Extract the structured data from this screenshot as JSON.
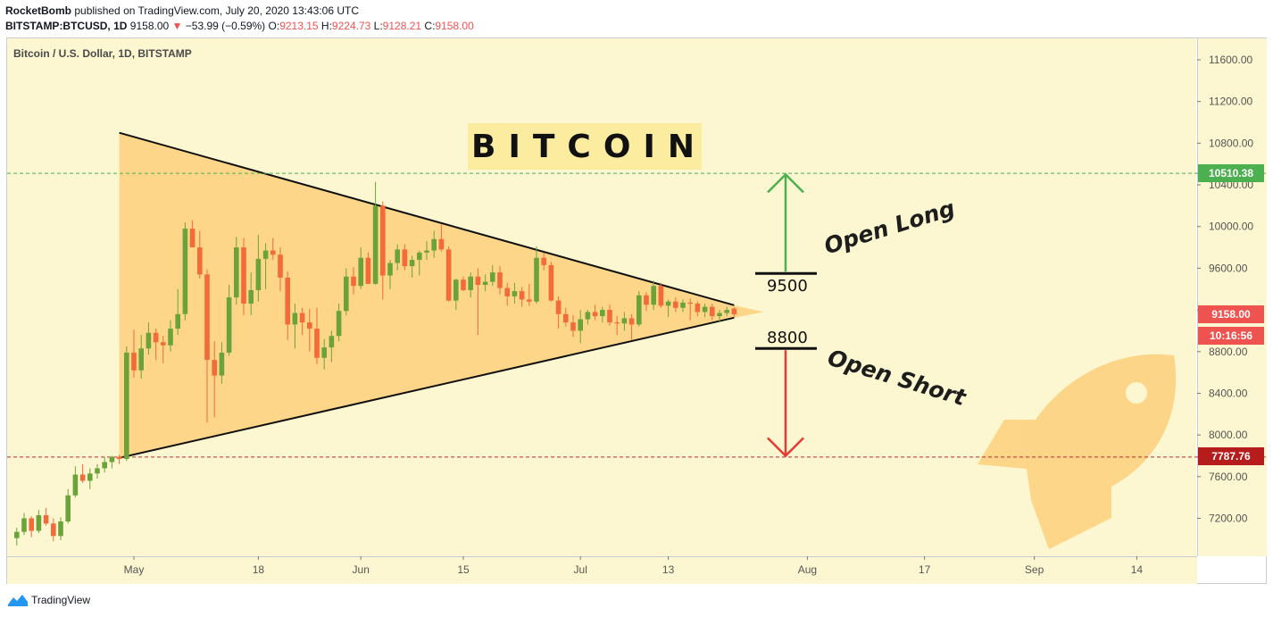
{
  "header": {
    "author": "RocketBomb",
    "published_text": "published on TradingView.com, July 20, 2020 13:43:06 UTC",
    "symbol_line": "BITSTAMP:BTCUSD, 1D",
    "last_price": "9158.00",
    "change": "−53.99 (−0.59%)",
    "open_label": "O:",
    "open_value": "9213.15",
    "high_label": "H:",
    "high_value": "9224.73",
    "low_label": "L:",
    "low_value": "9128.21",
    "close_label": "C:",
    "close_value": "9158.00"
  },
  "legend": {
    "symbol_description": "Bitcoin / U.S. Dollar, 1D, BITSTAMP"
  },
  "annotations": {
    "title": "BITCOIN",
    "long_level": "9500",
    "short_level": "8800",
    "long_text": "Open Long",
    "short_text": "Open Short"
  },
  "price_tags": {
    "target_high": "10510.38",
    "last_price": "9158.00",
    "countdown": "10:16:56",
    "support": "7787.76"
  },
  "footer": {
    "brand": "TradingView"
  },
  "colors": {
    "background": "#fcf7d0",
    "up": "#6ba33a",
    "down": "#f26b38",
    "triangle_fill": "#fdd07c",
    "long_arrow": "#4caf50",
    "short_arrow": "#e53935",
    "tag_green": "#4caf50",
    "tag_red": "#ef5350",
    "tag_darkred": "#c62828"
  },
  "chart_data": {
    "type": "candlestick",
    "title": "Bitcoin / U.S. Dollar, 1D, BITSTAMP",
    "y_ticks": [
      7200,
      7600,
      8000,
      8400,
      8800,
      9200,
      9600,
      10000,
      10400,
      10800,
      11200,
      11600
    ],
    "y_tick_labels": [
      "7200.00",
      "7600.00",
      "8000.00",
      "8400.00",
      "8800.00",
      "9200.00",
      "9600.00",
      "10000.00",
      "10400.00",
      "10800.00",
      "11200.00",
      "11600.00"
    ],
    "x_ticks": [
      "May",
      "18",
      "Jun",
      "15",
      "Jul",
      "13",
      "Aug",
      "17",
      "Sep",
      "14"
    ],
    "x_tick_days": [
      0,
      17,
      31,
      45,
      61,
      73,
      92,
      108,
      123,
      137
    ],
    "ylim": [
      6950,
      11850
    ],
    "xlim": [
      -17,
      141
    ],
    "grid": false,
    "horizontal_levels": [
      {
        "value": 10510.38,
        "style": "dashed",
        "color": "#4caf50"
      },
      {
        "value": 7787.76,
        "style": "dashed",
        "color": "#c62828"
      }
    ],
    "triangle": {
      "apex_start_high": {
        "day": -2,
        "price": 10900
      },
      "apex_start_low": {
        "day": -2,
        "price": 7780
      },
      "end_upper": {
        "day": 82,
        "price": 9245
      },
      "end_lower": {
        "day": 82,
        "price": 9125
      },
      "tip": {
        "day": 86,
        "price": 9180
      }
    },
    "trade_levels": [
      {
        "name": "long",
        "value": 9550,
        "label": "9500",
        "arrow_to": 10500
      },
      {
        "name": "short",
        "value": 8830,
        "label": "8800",
        "arrow_to": 7800
      }
    ],
    "candles": [
      {
        "day": -16,
        "o": 7010,
        "h": 7110,
        "l": 6940,
        "c": 7070
      },
      {
        "day": -15,
        "o": 7070,
        "h": 7250,
        "l": 7040,
        "c": 7200
      },
      {
        "day": -14,
        "o": 7200,
        "h": 7220,
        "l": 7020,
        "c": 7080
      },
      {
        "day": -13,
        "o": 7080,
        "h": 7280,
        "l": 7060,
        "c": 7230
      },
      {
        "day": -12,
        "o": 7230,
        "h": 7300,
        "l": 7130,
        "c": 7150
      },
      {
        "day": -11,
        "o": 7150,
        "h": 7200,
        "l": 6980,
        "c": 7030
      },
      {
        "day": -10,
        "o": 7030,
        "h": 7210,
        "l": 6990,
        "c": 7170
      },
      {
        "day": -9,
        "o": 7170,
        "h": 7480,
        "l": 7150,
        "c": 7420
      },
      {
        "day": -8,
        "o": 7420,
        "h": 7700,
        "l": 7400,
        "c": 7620
      },
      {
        "day": -7,
        "o": 7620,
        "h": 7720,
        "l": 7540,
        "c": 7560
      },
      {
        "day": -6,
        "o": 7560,
        "h": 7680,
        "l": 7480,
        "c": 7630
      },
      {
        "day": -5,
        "o": 7630,
        "h": 7720,
        "l": 7580,
        "c": 7680
      },
      {
        "day": -4,
        "o": 7680,
        "h": 7790,
        "l": 7640,
        "c": 7740
      },
      {
        "day": -3,
        "o": 7740,
        "h": 7800,
        "l": 7680,
        "c": 7790
      },
      {
        "day": -2,
        "o": 7790,
        "h": 7810,
        "l": 7720,
        "c": 7770
      },
      {
        "day": -1,
        "o": 7770,
        "h": 8850,
        "l": 7750,
        "c": 8790
      },
      {
        "day": 0,
        "o": 8790,
        "h": 9010,
        "l": 8550,
        "c": 8620
      },
      {
        "day": 1,
        "o": 8620,
        "h": 8960,
        "l": 8540,
        "c": 8830
      },
      {
        "day": 2,
        "o": 8830,
        "h": 9080,
        "l": 8770,
        "c": 8980
      },
      {
        "day": 3,
        "o": 8980,
        "h": 9020,
        "l": 8720,
        "c": 8890
      },
      {
        "day": 4,
        "o": 8890,
        "h": 8950,
        "l": 8690,
        "c": 8860
      },
      {
        "day": 5,
        "o": 8860,
        "h": 9100,
        "l": 8800,
        "c": 9020
      },
      {
        "day": 6,
        "o": 9020,
        "h": 9400,
        "l": 8960,
        "c": 9160
      },
      {
        "day": 7,
        "o": 9160,
        "h": 10040,
        "l": 9100,
        "c": 9980
      },
      {
        "day": 8,
        "o": 9980,
        "h": 10060,
        "l": 9800,
        "c": 9800
      },
      {
        "day": 9,
        "o": 9800,
        "h": 9960,
        "l": 9500,
        "c": 9540
      },
      {
        "day": 10,
        "o": 9540,
        "h": 9590,
        "l": 8120,
        "c": 8720
      },
      {
        "day": 11,
        "o": 8720,
        "h": 8900,
        "l": 8170,
        "c": 8570
      },
      {
        "day": 12,
        "o": 8570,
        "h": 8890,
        "l": 8490,
        "c": 8790
      },
      {
        "day": 13,
        "o": 8790,
        "h": 9440,
        "l": 8760,
        "c": 9320
      },
      {
        "day": 14,
        "o": 9320,
        "h": 9900,
        "l": 9250,
        "c": 9800
      },
      {
        "day": 15,
        "o": 9800,
        "h": 9890,
        "l": 9150,
        "c": 9260
      },
      {
        "day": 16,
        "o": 9260,
        "h": 9560,
        "l": 9150,
        "c": 9390
      },
      {
        "day": 17,
        "o": 9390,
        "h": 9920,
        "l": 9280,
        "c": 9690
      },
      {
        "day": 18,
        "o": 9690,
        "h": 9840,
        "l": 9400,
        "c": 9770
      },
      {
        "day": 19,
        "o": 9770,
        "h": 9890,
        "l": 9680,
        "c": 9730
      },
      {
        "day": 20,
        "o": 9730,
        "h": 9800,
        "l": 9380,
        "c": 9510
      },
      {
        "day": 21,
        "o": 9510,
        "h": 9570,
        "l": 8910,
        "c": 9060
      },
      {
        "day": 22,
        "o": 9060,
        "h": 9260,
        "l": 8830,
        "c": 9170
      },
      {
        "day": 23,
        "o": 9170,
        "h": 9220,
        "l": 8960,
        "c": 9080
      },
      {
        "day": 24,
        "o": 9080,
        "h": 9210,
        "l": 8800,
        "c": 9020
      },
      {
        "day": 25,
        "o": 9020,
        "h": 9220,
        "l": 8680,
        "c": 8740
      },
      {
        "day": 26,
        "o": 8740,
        "h": 8920,
        "l": 8630,
        "c": 8840
      },
      {
        "day": 27,
        "o": 8840,
        "h": 9000,
        "l": 8700,
        "c": 8950
      },
      {
        "day": 28,
        "o": 8950,
        "h": 9260,
        "l": 8900,
        "c": 9190
      },
      {
        "day": 29,
        "o": 9190,
        "h": 9600,
        "l": 9150,
        "c": 9520
      },
      {
        "day": 30,
        "o": 9520,
        "h": 9610,
        "l": 9350,
        "c": 9430
      },
      {
        "day": 31,
        "o": 9430,
        "h": 9800,
        "l": 9400,
        "c": 9700
      },
      {
        "day": 32,
        "o": 9700,
        "h": 9750,
        "l": 9450,
        "c": 9450
      },
      {
        "day": 33,
        "o": 9450,
        "h": 10430,
        "l": 9440,
        "c": 10200
      },
      {
        "day": 34,
        "o": 10200,
        "h": 10240,
        "l": 9300,
        "c": 9530
      },
      {
        "day": 35,
        "o": 9530,
        "h": 9680,
        "l": 9400,
        "c": 9650
      },
      {
        "day": 36,
        "o": 9650,
        "h": 9830,
        "l": 9580,
        "c": 9780
      },
      {
        "day": 37,
        "o": 9780,
        "h": 9830,
        "l": 9580,
        "c": 9620
      },
      {
        "day": 38,
        "o": 9620,
        "h": 9720,
        "l": 9510,
        "c": 9680
      },
      {
        "day": 39,
        "o": 9680,
        "h": 9770,
        "l": 9530,
        "c": 9750
      },
      {
        "day": 40,
        "o": 9750,
        "h": 9860,
        "l": 9680,
        "c": 9770
      },
      {
        "day": 41,
        "o": 9770,
        "h": 9960,
        "l": 9700,
        "c": 9880
      },
      {
        "day": 42,
        "o": 9880,
        "h": 10020,
        "l": 9760,
        "c": 9780
      },
      {
        "day": 43,
        "o": 9780,
        "h": 9810,
        "l": 9280,
        "c": 9290
      },
      {
        "day": 44,
        "o": 9290,
        "h": 9500,
        "l": 9200,
        "c": 9490
      },
      {
        "day": 45,
        "o": 9490,
        "h": 9520,
        "l": 9380,
        "c": 9390
      },
      {
        "day": 46,
        "o": 9390,
        "h": 9560,
        "l": 9320,
        "c": 9520
      },
      {
        "day": 47,
        "o": 9520,
        "h": 9600,
        "l": 8960,
        "c": 9440
      },
      {
        "day": 48,
        "o": 9440,
        "h": 9540,
        "l": 9380,
        "c": 9470
      },
      {
        "day": 49,
        "o": 9470,
        "h": 9630,
        "l": 9430,
        "c": 9560
      },
      {
        "day": 50,
        "o": 9560,
        "h": 9620,
        "l": 9350,
        "c": 9410
      },
      {
        "day": 51,
        "o": 9410,
        "h": 9460,
        "l": 9240,
        "c": 9330
      },
      {
        "day": 52,
        "o": 9330,
        "h": 9460,
        "l": 9260,
        "c": 9380
      },
      {
        "day": 53,
        "o": 9380,
        "h": 9420,
        "l": 9230,
        "c": 9300
      },
      {
        "day": 54,
        "o": 9300,
        "h": 9450,
        "l": 9240,
        "c": 9280
      },
      {
        "day": 55,
        "o": 9280,
        "h": 9810,
        "l": 9260,
        "c": 9700
      },
      {
        "day": 56,
        "o": 9700,
        "h": 9750,
        "l": 9580,
        "c": 9630
      },
      {
        "day": 57,
        "o": 9630,
        "h": 9660,
        "l": 9280,
        "c": 9290
      },
      {
        "day": 58,
        "o": 9290,
        "h": 9330,
        "l": 9020,
        "c": 9160
      },
      {
        "day": 59,
        "o": 9160,
        "h": 9220,
        "l": 9040,
        "c": 9080
      },
      {
        "day": 60,
        "o": 9080,
        "h": 9150,
        "l": 8940,
        "c": 9000
      },
      {
        "day": 61,
        "o": 9000,
        "h": 9200,
        "l": 8880,
        "c": 9110
      },
      {
        "day": 62,
        "o": 9110,
        "h": 9200,
        "l": 9060,
        "c": 9180
      },
      {
        "day": 63,
        "o": 9180,
        "h": 9250,
        "l": 9100,
        "c": 9140
      },
      {
        "day": 64,
        "o": 9140,
        "h": 9230,
        "l": 9080,
        "c": 9200
      },
      {
        "day": 65,
        "o": 9200,
        "h": 9250,
        "l": 9050,
        "c": 9080
      },
      {
        "day": 66,
        "o": 9080,
        "h": 9140,
        "l": 8960,
        "c": 9070
      },
      {
        "day": 67,
        "o": 9070,
        "h": 9180,
        "l": 9000,
        "c": 9120
      },
      {
        "day": 68,
        "o": 9120,
        "h": 9160,
        "l": 8910,
        "c": 9060
      },
      {
        "day": 69,
        "o": 9060,
        "h": 9380,
        "l": 9040,
        "c": 9340
      },
      {
        "day": 70,
        "o": 9340,
        "h": 9370,
        "l": 9190,
        "c": 9250
      },
      {
        "day": 71,
        "o": 9250,
        "h": 9480,
        "l": 9200,
        "c": 9430
      },
      {
        "day": 72,
        "o": 9430,
        "h": 9460,
        "l": 9220,
        "c": 9240
      },
      {
        "day": 73,
        "o": 9240,
        "h": 9300,
        "l": 9130,
        "c": 9280
      },
      {
        "day": 74,
        "o": 9280,
        "h": 9320,
        "l": 9180,
        "c": 9220
      },
      {
        "day": 75,
        "o": 9220,
        "h": 9300,
        "l": 9180,
        "c": 9270
      },
      {
        "day": 76,
        "o": 9270,
        "h": 9310,
        "l": 9100,
        "c": 9260
      },
      {
        "day": 77,
        "o": 9260,
        "h": 9280,
        "l": 9140,
        "c": 9180
      },
      {
        "day": 78,
        "o": 9180,
        "h": 9260,
        "l": 9130,
        "c": 9230
      },
      {
        "day": 79,
        "o": 9230,
        "h": 9260,
        "l": 9100,
        "c": 9140
      },
      {
        "day": 80,
        "o": 9140,
        "h": 9200,
        "l": 9080,
        "c": 9170
      },
      {
        "day": 81,
        "o": 9170,
        "h": 9230,
        "l": 9140,
        "c": 9200
      },
      {
        "day": 82,
        "o": 9213,
        "h": 9225,
        "l": 9128,
        "c": 9158
      }
    ]
  }
}
